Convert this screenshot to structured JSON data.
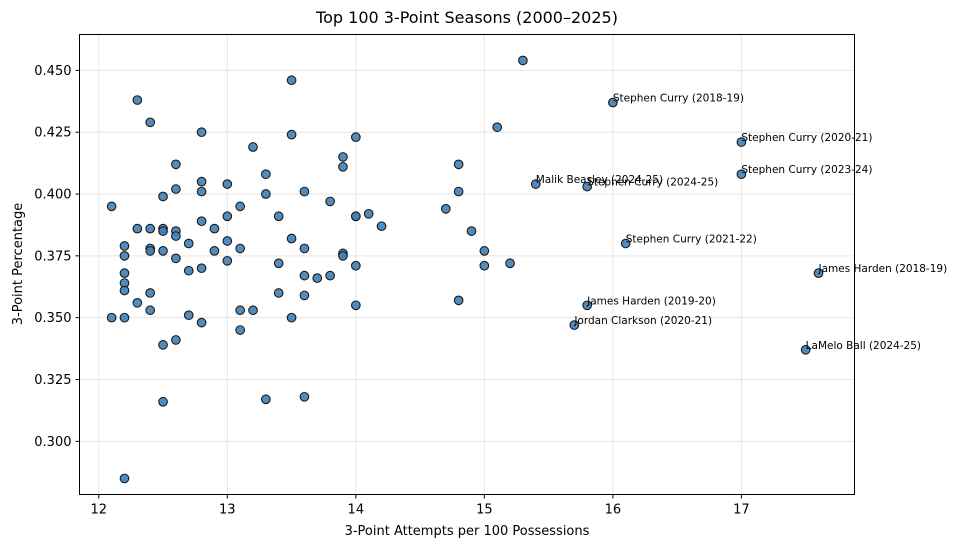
{
  "chart_data": {
    "type": "scatter",
    "title": "Top 100 3-Point Seasons (2000–2025)",
    "xlabel": "3-Point Attempts per 100 Possessions",
    "ylabel": "3-Point Percentage",
    "xlim": [
      11.85,
      17.88
    ],
    "ylim": [
      0.2785,
      0.4645
    ],
    "xticks": [
      12,
      13,
      14,
      15,
      16,
      17
    ],
    "xtick_labels": [
      "12",
      "13",
      "14",
      "15",
      "16",
      "17"
    ],
    "yticks": [
      0.3,
      0.325,
      0.35,
      0.375,
      0.4,
      0.425,
      0.45
    ],
    "ytick_labels": [
      "0.300",
      "0.325",
      "0.350",
      "0.375",
      "0.400",
      "0.425",
      "0.450"
    ],
    "grid": true,
    "point_color": "#3f80b6",
    "points": [
      {
        "x": 12.1,
        "y": 0.395
      },
      {
        "x": 12.1,
        "y": 0.35
      },
      {
        "x": 12.2,
        "y": 0.379
      },
      {
        "x": 12.2,
        "y": 0.375
      },
      {
        "x": 12.2,
        "y": 0.368
      },
      {
        "x": 12.2,
        "y": 0.364
      },
      {
        "x": 12.2,
        "y": 0.361
      },
      {
        "x": 12.2,
        "y": 0.35
      },
      {
        "x": 12.2,
        "y": 0.285
      },
      {
        "x": 12.3,
        "y": 0.438
      },
      {
        "x": 12.3,
        "y": 0.386
      },
      {
        "x": 12.3,
        "y": 0.356
      },
      {
        "x": 12.4,
        "y": 0.429
      },
      {
        "x": 12.4,
        "y": 0.386
      },
      {
        "x": 12.4,
        "y": 0.378
      },
      {
        "x": 12.4,
        "y": 0.377
      },
      {
        "x": 12.4,
        "y": 0.36
      },
      {
        "x": 12.4,
        "y": 0.353
      },
      {
        "x": 12.5,
        "y": 0.399
      },
      {
        "x": 12.5,
        "y": 0.386
      },
      {
        "x": 12.5,
        "y": 0.385
      },
      {
        "x": 12.5,
        "y": 0.377
      },
      {
        "x": 12.5,
        "y": 0.339
      },
      {
        "x": 12.5,
        "y": 0.316
      },
      {
        "x": 12.6,
        "y": 0.412
      },
      {
        "x": 12.6,
        "y": 0.402
      },
      {
        "x": 12.6,
        "y": 0.385
      },
      {
        "x": 12.6,
        "y": 0.383
      },
      {
        "x": 12.6,
        "y": 0.374
      },
      {
        "x": 12.6,
        "y": 0.341
      },
      {
        "x": 12.7,
        "y": 0.38
      },
      {
        "x": 12.7,
        "y": 0.369
      },
      {
        "x": 12.7,
        "y": 0.351
      },
      {
        "x": 12.8,
        "y": 0.425
      },
      {
        "x": 12.8,
        "y": 0.405
      },
      {
        "x": 12.8,
        "y": 0.401
      },
      {
        "x": 12.8,
        "y": 0.389
      },
      {
        "x": 12.8,
        "y": 0.37
      },
      {
        "x": 12.8,
        "y": 0.348
      },
      {
        "x": 12.9,
        "y": 0.386
      },
      {
        "x": 12.9,
        "y": 0.377
      },
      {
        "x": 13.0,
        "y": 0.404
      },
      {
        "x": 13.0,
        "y": 0.391
      },
      {
        "x": 13.0,
        "y": 0.381
      },
      {
        "x": 13.0,
        "y": 0.373
      },
      {
        "x": 13.1,
        "y": 0.395
      },
      {
        "x": 13.1,
        "y": 0.378
      },
      {
        "x": 13.1,
        "y": 0.353
      },
      {
        "x": 13.1,
        "y": 0.345
      },
      {
        "x": 13.2,
        "y": 0.419
      },
      {
        "x": 13.2,
        "y": 0.353
      },
      {
        "x": 13.3,
        "y": 0.408
      },
      {
        "x": 13.3,
        "y": 0.4
      },
      {
        "x": 13.3,
        "y": 0.317
      },
      {
        "x": 13.4,
        "y": 0.391
      },
      {
        "x": 13.4,
        "y": 0.372
      },
      {
        "x": 13.4,
        "y": 0.36
      },
      {
        "x": 13.5,
        "y": 0.446
      },
      {
        "x": 13.5,
        "y": 0.424
      },
      {
        "x": 13.5,
        "y": 0.382
      },
      {
        "x": 13.5,
        "y": 0.35
      },
      {
        "x": 13.6,
        "y": 0.401
      },
      {
        "x": 13.6,
        "y": 0.378
      },
      {
        "x": 13.6,
        "y": 0.367
      },
      {
        "x": 13.6,
        "y": 0.359
      },
      {
        "x": 13.6,
        "y": 0.318
      },
      {
        "x": 13.7,
        "y": 0.366
      },
      {
        "x": 13.8,
        "y": 0.397
      },
      {
        "x": 13.8,
        "y": 0.367
      },
      {
        "x": 13.9,
        "y": 0.415
      },
      {
        "x": 13.9,
        "y": 0.411
      },
      {
        "x": 13.9,
        "y": 0.376
      },
      {
        "x": 13.9,
        "y": 0.375
      },
      {
        "x": 14.0,
        "y": 0.423
      },
      {
        "x": 14.0,
        "y": 0.391
      },
      {
        "x": 14.0,
        "y": 0.391
      },
      {
        "x": 14.0,
        "y": 0.371
      },
      {
        "x": 14.0,
        "y": 0.355
      },
      {
        "x": 14.1,
        "y": 0.392
      },
      {
        "x": 14.2,
        "y": 0.387
      },
      {
        "x": 14.7,
        "y": 0.394
      },
      {
        "x": 14.8,
        "y": 0.412
      },
      {
        "x": 14.8,
        "y": 0.401
      },
      {
        "x": 14.8,
        "y": 0.357
      },
      {
        "x": 14.9,
        "y": 0.385
      },
      {
        "x": 15.0,
        "y": 0.377
      },
      {
        "x": 15.0,
        "y": 0.371
      },
      {
        "x": 15.1,
        "y": 0.427
      },
      {
        "x": 15.2,
        "y": 0.372
      },
      {
        "x": 15.3,
        "y": 0.454
      },
      {
        "x": 15.4,
        "y": 0.404,
        "label": "Malik Beasley (2024-25)"
      },
      {
        "x": 15.7,
        "y": 0.347,
        "label": "Jordan Clarkson (2020-21)"
      },
      {
        "x": 15.8,
        "y": 0.403,
        "label": "Stephen Curry (2024-25)"
      },
      {
        "x": 15.8,
        "y": 0.355,
        "label": "James Harden (2019-20)"
      },
      {
        "x": 16.0,
        "y": 0.437,
        "label": "Stephen Curry (2018-19)"
      },
      {
        "x": 16.1,
        "y": 0.38,
        "label": "Stephen Curry (2021-22)"
      },
      {
        "x": 17.0,
        "y": 0.421,
        "label": "Stephen Curry (2020-21)"
      },
      {
        "x": 17.0,
        "y": 0.408,
        "label": "Stephen Curry (2023-24)"
      },
      {
        "x": 17.5,
        "y": 0.337,
        "label": "LaMelo Ball (2024-25)"
      },
      {
        "x": 17.6,
        "y": 0.368,
        "label": "James Harden (2018-19)"
      }
    ]
  }
}
